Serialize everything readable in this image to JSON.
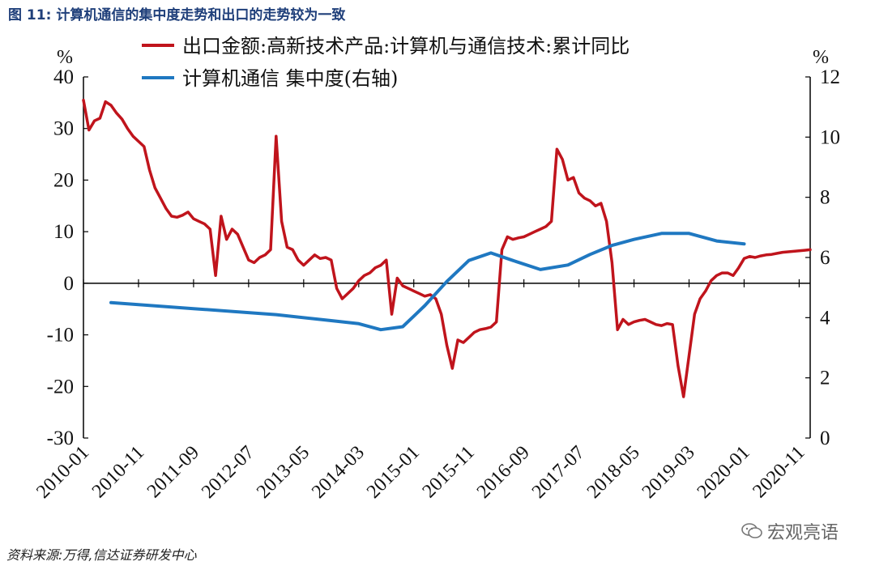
{
  "title_num": "图 11:",
  "title": "计算机通信的集中度走势和出口的走势较为一致",
  "source": "资料来源:万得,信达证券研发中心",
  "watermark": "宏观亮语",
  "chart_data": {
    "type": "line",
    "left_unit": "%",
    "right_unit": "%",
    "ylim_left": [
      -30,
      40
    ],
    "ylim_right": [
      0,
      12
    ],
    "left_ticks": [
      "40",
      "30",
      "20",
      "10",
      "0",
      "-10",
      "-20",
      "-30"
    ],
    "right_ticks": [
      "12",
      "10",
      "8",
      "6",
      "4",
      "2",
      "0"
    ],
    "x_tick_labels": [
      "2010-01",
      "2010-11",
      "2011-09",
      "2012-07",
      "2013-05",
      "2014-03",
      "2015-01",
      "2015-11",
      "2016-09",
      "2017-07",
      "2018-05",
      "2019-03",
      "2020-01",
      "2020-11"
    ],
    "series": [
      {
        "name": "出口金额:高新技术产品:计算机与通信技术:累计同比",
        "axis": "left",
        "color": "#c0141c",
        "x": [
          0,
          1,
          2,
          3,
          4,
          5,
          6,
          7,
          8,
          9,
          10,
          11,
          12,
          13,
          14,
          15,
          16,
          17,
          18,
          19,
          20,
          21,
          22,
          23,
          24,
          25,
          26,
          27,
          28,
          29,
          30,
          31,
          32,
          33,
          34,
          35,
          36,
          37,
          38,
          39,
          40,
          41,
          42,
          43,
          44,
          45,
          46,
          47,
          48,
          49,
          50,
          51,
          52,
          53,
          54,
          55,
          56,
          57,
          58,
          59,
          60,
          61,
          62,
          63,
          64,
          65,
          66,
          67,
          68,
          69,
          70,
          71,
          72,
          73,
          74,
          75,
          76,
          77,
          78,
          79,
          80,
          81,
          82,
          83,
          84,
          85,
          86,
          87,
          88,
          89,
          90,
          91,
          92,
          93,
          94,
          95,
          96,
          97,
          98,
          99,
          100,
          101,
          102,
          103,
          104,
          105,
          106,
          107,
          108,
          109,
          110,
          111,
          112,
          113,
          114,
          115,
          116,
          117,
          118,
          119,
          120,
          121,
          122,
          123,
          124,
          125,
          126,
          127,
          128,
          129,
          130,
          131,
          132
        ],
        "values": [
          35.5,
          29.7,
          31.5,
          32.0,
          35.2,
          34.5,
          33.0,
          31.8,
          30.0,
          28.5,
          27.5,
          26.5,
          22.0,
          18.5,
          16.5,
          14.5,
          13.0,
          12.8,
          13.2,
          13.8,
          12.5,
          12.0,
          11.5,
          10.5,
          1.5,
          13.0,
          8.5,
          10.5,
          9.5,
          7.0,
          4.5,
          4.0,
          5.0,
          5.5,
          6.5,
          28.5,
          12.0,
          7.0,
          6.5,
          4.5,
          3.5,
          4.5,
          5.5,
          4.8,
          5.0,
          4.5,
          -1.0,
          -3.0,
          -2.0,
          -1.0,
          0.5,
          1.5,
          2.0,
          3.0,
          3.5,
          4.5,
          -6.0,
          1.0,
          -0.5,
          -1.0,
          -1.5,
          -2.0,
          -2.5,
          -2.2,
          -3.0,
          -6.0,
          -12.0,
          -16.5,
          -11.0,
          -11.5,
          -10.5,
          -9.5,
          -9.0,
          -8.8,
          -8.5,
          -7.5,
          6.5,
          9.0,
          8.5,
          8.8,
          9.0,
          9.5,
          10.0,
          10.5,
          11.0,
          12.0,
          26.0,
          24.0,
          20.0,
          20.5,
          17.5,
          16.5,
          16.0,
          15.0,
          15.5,
          12.0,
          4.0,
          -9.0,
          -7.0,
          -8.0,
          -7.5,
          -7.2,
          -7.0,
          -7.5,
          -8.0,
          -8.2,
          -7.8,
          -8.0,
          -16.0,
          -22.0,
          -14.0,
          -6.0,
          -3.0,
          -1.5,
          0.5,
          1.5,
          2.0,
          2.0,
          1.5,
          3.0,
          4.8,
          5.2,
          5.0,
          5.3,
          5.5,
          5.6,
          5.8,
          6.0,
          6.1,
          6.2,
          6.3,
          6.4,
          6.5
        ]
      },
      {
        "name": "计算机通信 集中度(右轴)",
        "axis": "right",
        "color": "#1f78c1",
        "x": [
          5,
          20,
          35,
          45,
          50,
          54,
          58,
          62,
          66,
          70,
          74,
          78,
          83,
          88,
          92,
          96,
          100,
          105,
          110,
          115,
          120
        ],
        "values": [
          4.5,
          4.3,
          4.1,
          3.9,
          3.8,
          3.6,
          3.7,
          4.4,
          5.2,
          5.9,
          6.15,
          5.9,
          5.6,
          5.75,
          6.1,
          6.4,
          6.6,
          6.8,
          6.8,
          6.55,
          6.45
        ]
      }
    ]
  }
}
